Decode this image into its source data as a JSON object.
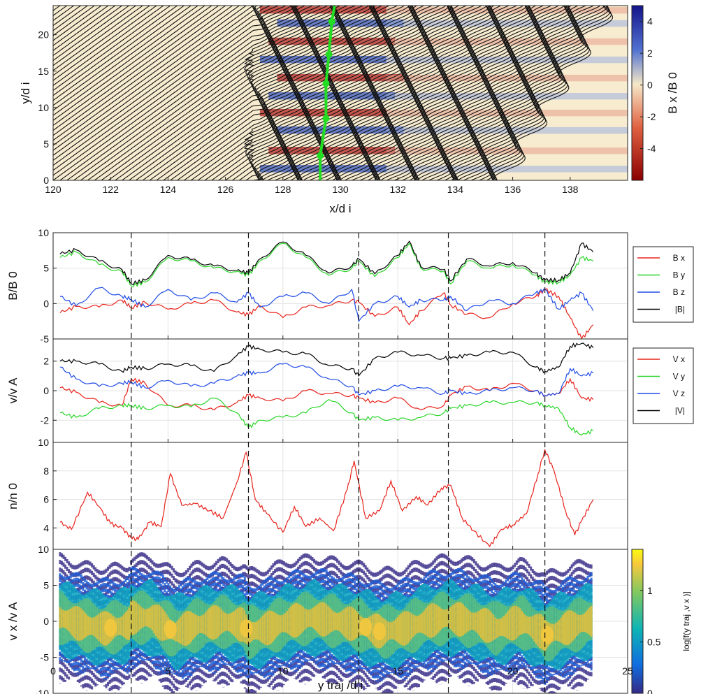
{
  "chart_data": [
    {
      "type": "heatmap",
      "xlabel": "x/d i",
      "ylabel": "y/d i",
      "xlim": [
        120,
        140
      ],
      "ylim": [
        0,
        24
      ],
      "xticks": [
        "120",
        "122",
        "124",
        "126",
        "128",
        "130",
        "132",
        "134",
        "136",
        "138"
      ],
      "yticks": [
        "0",
        "5",
        "10",
        "15",
        "20"
      ],
      "colorbar": {
        "label": "B x /B 0",
        "range": [
          -6,
          5
        ],
        "ticks": [
          "4",
          "2",
          "0",
          "-2",
          "-4"
        ],
        "colors": [
          "#8b0000",
          "#e06040",
          "#f5e8c8",
          "#5070d0",
          "#14148a"
        ]
      },
      "overlay": "magnetic field lines",
      "trajectory": {
        "color": "#22dd22",
        "x": [
          129.3,
          129.3,
          129.5,
          129.5,
          129.6,
          129.7,
          129.8
        ],
        "y": [
          0,
          3.4,
          8.5,
          13.3,
          17.3,
          21.8,
          24
        ]
      }
    },
    {
      "type": "line",
      "ylabel": "B/B 0",
      "xlim": [
        0,
        25
      ],
      "ylim": [
        -5,
        10
      ],
      "yticks": [
        "-5",
        "0",
        "5",
        "10"
      ],
      "legend": "right",
      "series": [
        {
          "name": "B x",
          "color": "#e8231c",
          "x": [
            0.3,
            1,
            2,
            3,
            3.4,
            4,
            5,
            6,
            7,
            8,
            8.5,
            9,
            10,
            11,
            12,
            13,
            13.3,
            14,
            15,
            15.5,
            16,
            17,
            17.3,
            18,
            19,
            20,
            21,
            21.4,
            22,
            22.5,
            23,
            23.5
          ],
          "values": [
            -1.3,
            -0.4,
            -0.5,
            0.5,
            -0.6,
            0.2,
            -0.8,
            0,
            0.5,
            -1.2,
            -1.6,
            -0.3,
            -2,
            -0.5,
            -0.3,
            0.5,
            0.2,
            -1.8,
            -0.5,
            -3,
            -1,
            1.5,
            -0.2,
            -1.5,
            -2,
            0,
            1,
            2,
            1,
            -2,
            -5,
            -3
          ]
        },
        {
          "name": "B y",
          "color": "#2ad62a",
          "x": [
            0.3,
            1,
            2,
            3,
            3.4,
            4,
            5,
            6,
            7,
            8,
            8.5,
            9,
            10,
            11,
            12,
            13,
            13.3,
            14,
            15,
            15.5,
            16,
            17,
            17.3,
            18,
            19,
            20,
            21,
            21.4,
            22,
            22.5,
            23,
            23.5
          ],
          "values": [
            6.5,
            7.3,
            5.5,
            4.5,
            2.5,
            3,
            6.5,
            6,
            5,
            4.5,
            4,
            6,
            8.5,
            6.5,
            4,
            5,
            6,
            3.8,
            6.5,
            8.5,
            5,
            4.5,
            2.8,
            6,
            5,
            5.5,
            4,
            3,
            3,
            4,
            6.5,
            6
          ]
        },
        {
          "name": "B z",
          "color": "#1f4be6",
          "x": [
            0.3,
            1,
            2,
            3,
            3.4,
            4,
            5,
            6,
            7,
            8,
            8.5,
            9,
            10,
            11,
            12,
            13,
            13.3,
            14,
            15,
            15.5,
            16,
            17,
            17.3,
            18,
            19,
            20,
            21,
            21.4,
            22,
            22.5,
            23,
            23.5
          ],
          "values": [
            1,
            -0.3,
            2.2,
            1,
            0.6,
            -0.5,
            2,
            0.5,
            1.5,
            0.2,
            1.5,
            -0.5,
            1,
            1.5,
            0,
            2,
            -2.5,
            0,
            1,
            -0.5,
            0.5,
            0.5,
            1,
            -1,
            0.5,
            0,
            1.5,
            2,
            -0.8,
            0.5,
            1.5,
            -1
          ]
        },
        {
          "name": "|B|",
          "color": "#000000",
          "x": [
            0.3,
            1,
            2,
            3,
            3.4,
            4,
            5,
            6,
            7,
            8,
            8.5,
            9,
            10,
            11,
            12,
            13,
            13.3,
            14,
            15,
            15.5,
            16,
            17,
            17.3,
            18,
            19,
            20,
            21,
            21.4,
            22,
            22.5,
            23,
            23.5
          ],
          "values": [
            7,
            7.6,
            6,
            4.8,
            2.8,
            3.3,
            6.8,
            6.2,
            5.3,
            4.7,
            4.3,
            6.3,
            8.7,
            6.8,
            4.3,
            5.3,
            6.3,
            4.2,
            6.8,
            8.8,
            5.2,
            4.8,
            3.2,
            6.3,
            5.3,
            5.8,
            4.3,
            3.3,
            3.3,
            4.3,
            8.5,
            7.3
          ]
        }
      ]
    },
    {
      "type": "line",
      "ylabel": "v/v A",
      "xlim": [
        0,
        25
      ],
      "ylim": [
        -3.5,
        3.5
      ],
      "yticks": [
        "-2",
        "0",
        "2"
      ],
      "legend": "right",
      "series": [
        {
          "name": "V x",
          "color": "#e8231c",
          "x": [
            0.3,
            1,
            2,
            3,
            3.4,
            4,
            5,
            6,
            7,
            8,
            8.5,
            9,
            10,
            11,
            12,
            13,
            13.3,
            14,
            15,
            16,
            17,
            17.3,
            18,
            19,
            20,
            21,
            21.4,
            22,
            22.5,
            23,
            23.5
          ],
          "values": [
            0.2,
            -0.1,
            -0.8,
            -1,
            0.8,
            0.5,
            -1,
            -1,
            -1.3,
            -0.8,
            -0.3,
            -0.5,
            -0.7,
            0,
            -0.2,
            -0.3,
            -0.5,
            -0.8,
            -0.5,
            -1.3,
            -1,
            -0.3,
            0.3,
            0,
            0.5,
            0,
            -0.3,
            -0.2,
            0.8,
            -0.5,
            -0.6
          ]
        },
        {
          "name": "V y",
          "color": "#2ad62a",
          "x": [
            0.3,
            1,
            2,
            3,
            3.4,
            4,
            5,
            6,
            7,
            8,
            8.5,
            9,
            10,
            11,
            12,
            13,
            13.3,
            14,
            15,
            16,
            17,
            17.3,
            18,
            19,
            20,
            21,
            21.4,
            22,
            22.5,
            23,
            23.5
          ],
          "values": [
            -1.5,
            -1.8,
            -1.2,
            -1,
            -1,
            -1.2,
            -1,
            -1.1,
            -0.5,
            -1.5,
            -2.5,
            -2,
            -1.8,
            -1.5,
            -0.6,
            -1.5,
            -2,
            -1.8,
            -2,
            -1.8,
            -1.5,
            -1.2,
            -1,
            -0.8,
            -0.8,
            -0.8,
            -1,
            -1.2,
            -2.5,
            -3,
            -2.7
          ]
        },
        {
          "name": "V z",
          "color": "#1f4be6",
          "x": [
            0.3,
            1,
            2,
            3,
            3.4,
            4,
            5,
            6,
            7,
            8,
            8.5,
            9,
            10,
            11,
            12,
            13,
            13.3,
            14,
            15,
            16,
            17,
            17.3,
            18,
            19,
            20,
            21,
            21.4,
            22,
            22.5,
            23,
            23.5
          ],
          "values": [
            1.6,
            0.8,
            0.3,
            0.5,
            0.6,
            0.2,
            0.7,
            0.3,
            0.5,
            1,
            1.2,
            1.2,
            1.8,
            1.6,
            0.8,
            0.3,
            -0.3,
            0,
            0.3,
            0.2,
            -0.2,
            0,
            -0.2,
            0,
            0.2,
            0,
            -0.3,
            -0.2,
            1.5,
            1,
            1.2
          ]
        },
        {
          "name": "|V|",
          "color": "#000000",
          "x": [
            0.3,
            1,
            2,
            3,
            3.4,
            4,
            5,
            6,
            7,
            8,
            8.5,
            9,
            10,
            11,
            12,
            13,
            13.3,
            14,
            15,
            16,
            17,
            17.3,
            18,
            19,
            20,
            21,
            21.4,
            22,
            22.5,
            23,
            23.5
          ],
          "values": [
            2,
            2,
            1.8,
            1.3,
            1.6,
            1.5,
            1.8,
            1.7,
            1.3,
            2.4,
            3,
            2.8,
            2.6,
            2.5,
            1.7,
            1.5,
            1,
            2.2,
            2.6,
            2.4,
            2.2,
            2.2,
            2.4,
            2.6,
            2.6,
            1.6,
            1.3,
            1.6,
            3,
            3.2,
            2.9
          ]
        }
      ]
    },
    {
      "type": "line",
      "ylabel": "n/n 0",
      "xlim": [
        0,
        25
      ],
      "ylim": [
        2.5,
        10
      ],
      "yticks": [
        "4",
        "6",
        "8",
        "10"
      ],
      "series": [
        {
          "name": "",
          "color": "#e8231c",
          "x": [
            0.3,
            0.8,
            1.5,
            2,
            2.5,
            3,
            3.4,
            3.7,
            4.2,
            4.7,
            5.1,
            5.6,
            6.2,
            6.8,
            7.4,
            8,
            8.4,
            8.8,
            9.3,
            10,
            10.5,
            11,
            11.6,
            12.2,
            12.8,
            13.1,
            13.6,
            14.2,
            14.7,
            15.2,
            15.8,
            16.3,
            16.9,
            17.3,
            17.8,
            18.3,
            19,
            19.5,
            20,
            20.6,
            21.1,
            21.4,
            21.8,
            22.3,
            22.7,
            23,
            23.5
          ],
          "values": [
            4.4,
            3.9,
            6.5,
            5.5,
            4.3,
            4,
            3.3,
            3.2,
            4.4,
            4.1,
            7.8,
            5.6,
            5.7,
            5.2,
            4.7,
            7.2,
            9.3,
            6,
            5,
            3.7,
            5.5,
            4.1,
            4.7,
            3.8,
            6.7,
            8.7,
            4.7,
            5.2,
            7.3,
            5.2,
            6.2,
            5.6,
            6.8,
            7,
            4.7,
            3.8,
            2.7,
            3.9,
            4.2,
            5,
            7.8,
            9.5,
            8,
            5.2,
            3.5,
            4.5,
            6
          ]
        }
      ]
    },
    {
      "type": "heatmap",
      "xlabel": "y traj /d i",
      "ylabel": "v x /v A",
      "xlim": [
        0,
        25
      ],
      "ylim": [
        -10,
        10
      ],
      "xticks": [
        "0",
        "5",
        "10",
        "15",
        "20",
        "25"
      ],
      "yticks": [
        "-10",
        "-5",
        "0",
        "5",
        "10"
      ],
      "colorbar": {
        "label": "log[f(y traj ,v x )]",
        "range": [
          0,
          1.4
        ],
        "ticks": [
          "0",
          "0.5",
          "1"
        ],
        "colors": [
          "#352a87",
          "#0f6ee0",
          "#0fb5b5",
          "#80c860",
          "#f9c93c",
          "#f9fb0e"
        ]
      },
      "x": [
        0.3,
        1.3,
        2.3,
        3.3,
        3.4,
        4.3,
        5.3,
        6.3,
        7.3,
        8.3,
        8.5,
        9.3,
        10.3,
        11.3,
        12.3,
        13.3,
        14.3,
        15.3,
        16.3,
        17.2,
        18.3,
        19.3,
        20.3,
        21.3,
        21.4,
        22.3,
        23.3
      ],
      "center": [
        0.5,
        -0.5,
        -1,
        -0.5,
        0.5,
        0.5,
        -1.5,
        -0.5,
        0,
        -0.5,
        -1.5,
        -1,
        0,
        0.5,
        0,
        -0.5,
        -1.5,
        -1,
        0,
        0.5,
        0,
        -1,
        0,
        -1.5,
        -2,
        -1,
        0
      ]
    }
  ],
  "markers": {
    "dashed_x": [
      3.4,
      8.5,
      13.3,
      17.2,
      21.4
    ]
  }
}
